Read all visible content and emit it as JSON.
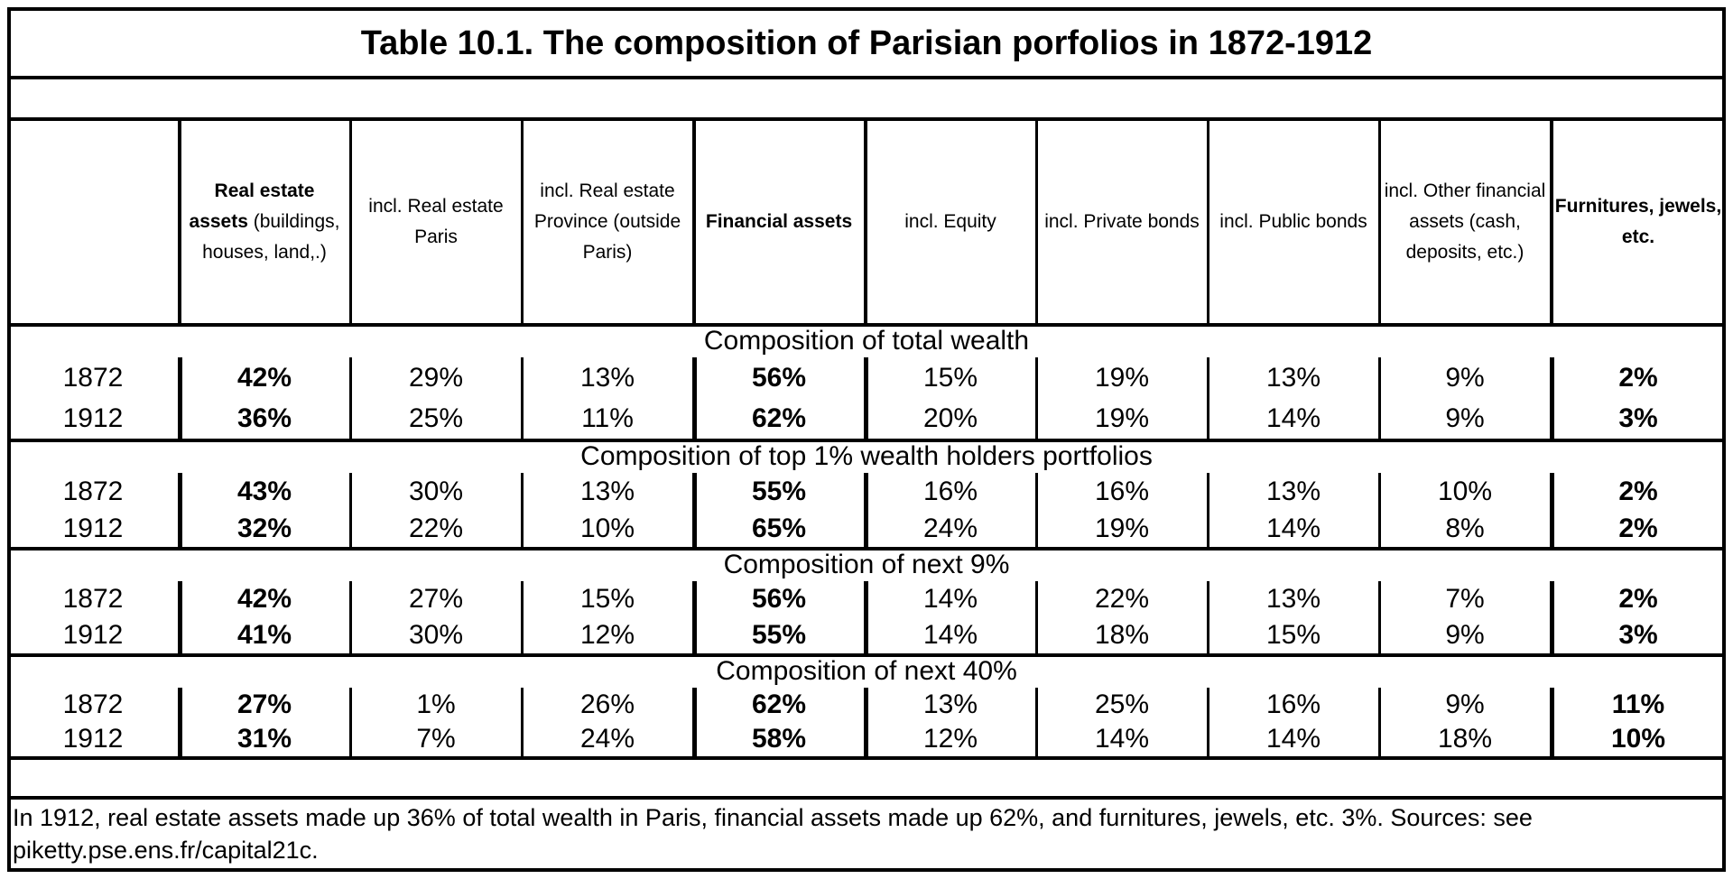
{
  "title": "Table 10.1. The composition of Parisian porfolios in 1872-1912",
  "columns": [
    {
      "bold_part": "",
      "plain_part": ""
    },
    {
      "bold_part": "Real estate assets",
      "plain_part": " (buildings, houses, land,.)"
    },
    {
      "bold_part": "",
      "plain_part": "incl. Real estate Paris"
    },
    {
      "bold_part": "",
      "plain_part": "incl. Real estate Province (outside Paris)"
    },
    {
      "bold_part": "Financial assets",
      "plain_part": ""
    },
    {
      "bold_part": "",
      "plain_part": "incl. Equity"
    },
    {
      "bold_part": "",
      "plain_part": "incl. Private bonds"
    },
    {
      "bold_part": "",
      "plain_part": "incl. Public bonds"
    },
    {
      "bold_part": "",
      "plain_part": "incl. Other financial assets (cash, deposits, etc.)"
    },
    {
      "bold_part": "Furnitures, jewels, etc.",
      "plain_part": ""
    }
  ],
  "sections": [
    {
      "title": "Composition of total wealth",
      "rows": [
        {
          "year": "1872",
          "values": [
            "42%",
            "29%",
            "13%",
            "56%",
            "15%",
            "19%",
            "13%",
            "9%",
            "2%"
          ]
        },
        {
          "year": "1912",
          "values": [
            "36%",
            "25%",
            "11%",
            "62%",
            "20%",
            "19%",
            "14%",
            "9%",
            "3%"
          ]
        }
      ]
    },
    {
      "title": "Composition of top 1% wealth holders portfolios",
      "rows": [
        {
          "year": "1872",
          "values": [
            "43%",
            "30%",
            "13%",
            "55%",
            "16%",
            "16%",
            "13%",
            "10%",
            "2%"
          ]
        },
        {
          "year": "1912",
          "values": [
            "32%",
            "22%",
            "10%",
            "65%",
            "24%",
            "19%",
            "14%",
            "8%",
            "2%"
          ]
        }
      ]
    },
    {
      "title": "Composition of next 9%",
      "rows": [
        {
          "year": "1872",
          "values": [
            "42%",
            "27%",
            "15%",
            "56%",
            "14%",
            "22%",
            "13%",
            "7%",
            "2%"
          ]
        },
        {
          "year": "1912",
          "values": [
            "41%",
            "30%",
            "12%",
            "55%",
            "14%",
            "18%",
            "15%",
            "9%",
            "3%"
          ]
        }
      ]
    },
    {
      "title": "Composition of next 40%",
      "rows": [
        {
          "year": "1872",
          "values": [
            "27%",
            "1%",
            "26%",
            "62%",
            "13%",
            "25%",
            "16%",
            "9%",
            "11%"
          ]
        },
        {
          "year": "1912",
          "values": [
            "31%",
            "7%",
            "24%",
            "58%",
            "12%",
            "14%",
            "14%",
            "18%",
            "10%"
          ]
        }
      ]
    }
  ],
  "note": "In 1912, real estate assets made up 36% of total wealth in Paris, financial assets made up 62%, and furnitures, jewels, etc. 3%. Sources: see piketty.pse.ens.fr/capital21c."
}
